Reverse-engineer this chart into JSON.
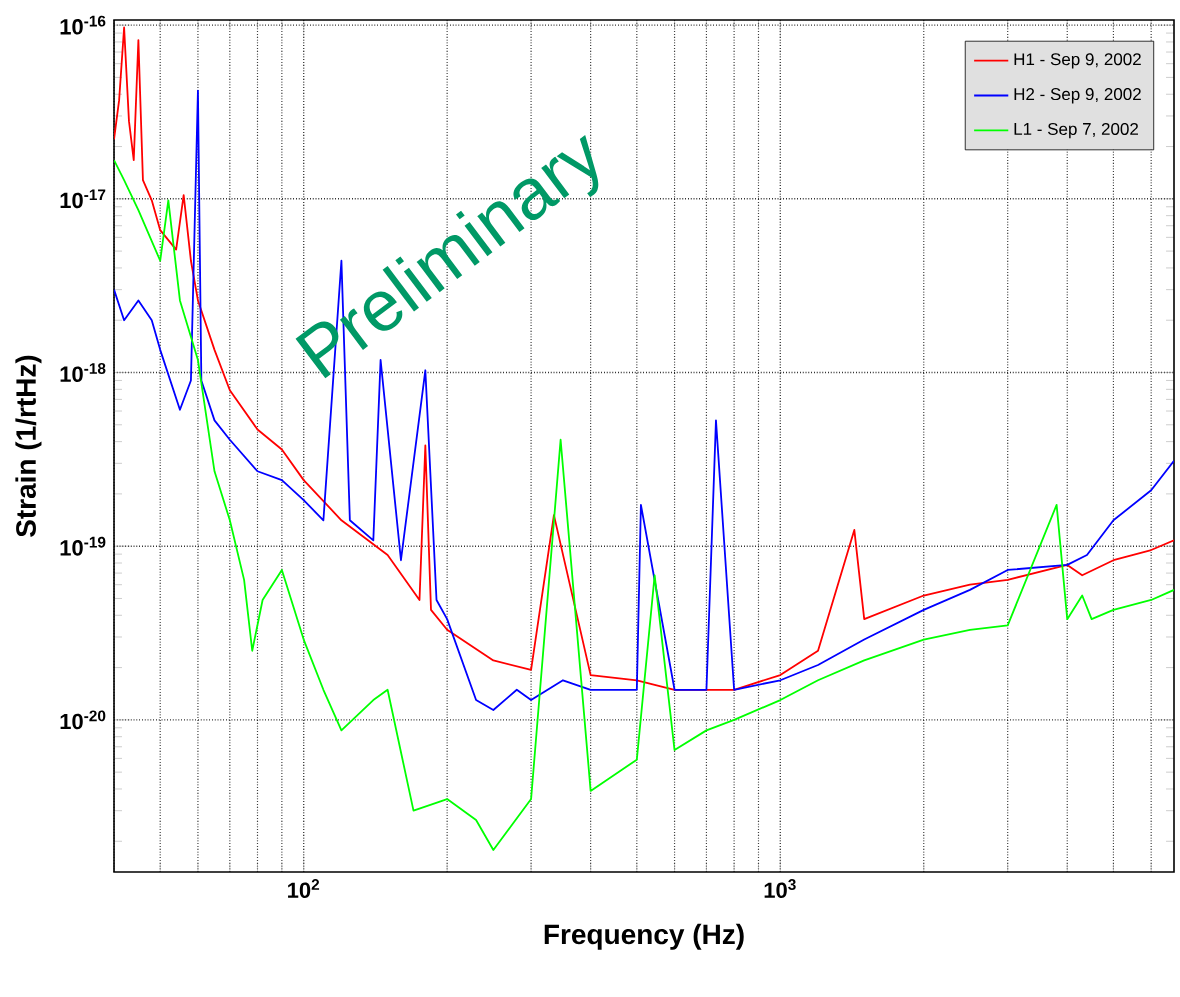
{
  "chart_data": {
    "type": "line",
    "xlabel": "Frequency (Hz)",
    "ylabel": "Strain (1/rtHz)",
    "log": "xy",
    "grid": true,
    "legend": "top right",
    "line_style": "solid",
    "xlim": [
      40,
      6700
    ],
    "ylim": [
      1.33e-21,
      1.07e-16
    ],
    "xticks": [
      {
        "value": 100,
        "label": "10$^{2}$"
      },
      {
        "value": 1000,
        "label": "10$^{3}$"
      }
    ],
    "yticks": [
      {
        "value": 1e-20,
        "label": "10$^{-20}$"
      },
      {
        "value": 1e-19,
        "label": "10$^{-19}$"
      },
      {
        "value": 1e-18,
        "label": "10$^{-18}$"
      },
      {
        "value": 1e-17,
        "label": "10$^{-17}$"
      },
      {
        "value": 1e-16,
        "label": "10$^{-16}$"
      }
    ],
    "annotations": [
      "Preliminary"
    ],
    "series": [
      {
        "name": "H1 - Sep 9, 2002",
        "color": "#ff0000",
        "x": [
          40,
          41,
          42,
          43,
          44,
          45,
          46,
          48,
          50,
          54,
          56,
          58,
          60,
          65,
          70,
          80,
          90,
          100,
          120,
          150,
          175,
          180,
          185,
          200,
          250,
          300,
          335,
          400,
          500,
          600,
          700,
          800,
          1000,
          1200,
          1430,
          1500,
          2000,
          2500,
          3000,
          4000,
          4300,
          5000,
          6000,
          6700
        ],
        "values": [
          2.2e-17,
          3.7e-17,
          9.7e-17,
          2.8e-17,
          1.67e-17,
          8.2e-17,
          1.28e-17,
          9.8e-18,
          6.6e-18,
          5.1e-18,
          1.05e-17,
          4.4e-18,
          2.6e-18,
          1.35e-18,
          7.9e-19,
          4.7e-19,
          3.6e-19,
          2.4e-19,
          1.41e-19,
          8.9e-20,
          4.9e-20,
          3.8e-19,
          4.3e-20,
          3.3e-20,
          2.2e-20,
          1.94e-20,
          1.51e-19,
          1.81e-20,
          1.69e-20,
          1.49e-20,
          1.49e-20,
          1.49e-20,
          1.81e-20,
          2.5e-20,
          1.24e-19,
          3.8e-20,
          5.2e-20,
          6e-20,
          6.4e-20,
          7.8e-20,
          6.8e-20,
          8.3e-20,
          9.5e-20,
          1.08e-19
        ]
      },
      {
        "name": "H2 - Sep 9, 2002",
        "color": "#0000ff",
        "x": [
          40,
          42,
          45,
          48,
          50,
          55,
          58,
          60,
          61,
          65,
          70,
          80,
          90,
          100,
          110,
          120,
          125,
          140,
          145,
          160,
          180,
          190,
          200,
          230,
          250,
          280,
          300,
          350,
          400,
          500,
          510,
          600,
          700,
          733,
          800,
          1000,
          1200,
          1500,
          2000,
          2500,
          3000,
          4000,
          4400,
          5000,
          6000,
          6700
        ],
        "values": [
          3e-18,
          2e-18,
          2.6e-18,
          2e-18,
          1.35e-18,
          6.1e-19,
          9e-19,
          4.2e-17,
          9e-19,
          5.3e-19,
          4.1e-19,
          2.7e-19,
          2.4e-19,
          1.84e-19,
          1.41e-19,
          4.4e-18,
          1.41e-19,
          1.08e-19,
          1.18e-18,
          8.3e-20,
          1.03e-18,
          4.9e-20,
          3.8e-20,
          1.3e-20,
          1.14e-20,
          1.49e-20,
          1.3e-20,
          1.69e-20,
          1.49e-20,
          1.49e-20,
          1.73e-19,
          1.49e-20,
          1.49e-20,
          5.3e-19,
          1.49e-20,
          1.69e-20,
          2.07e-20,
          2.9e-20,
          4.3e-20,
          5.6e-20,
          7.3e-20,
          7.8e-20,
          8.9e-20,
          1.41e-19,
          2.1e-19,
          3.1e-19
        ]
      },
      {
        "name": "L1 - Sep 7, 2002",
        "color": "#00ff00",
        "x": [
          40,
          42,
          45,
          50,
          52,
          55,
          60,
          65,
          70,
          75,
          78,
          82,
          90,
          100,
          110,
          120,
          140,
          150,
          170,
          200,
          230,
          250,
          300,
          346,
          400,
          500,
          545,
          600,
          700,
          800,
          1000,
          1200,
          1500,
          2000,
          2500,
          3000,
          3800,
          4000,
          4300,
          4500,
          5000,
          6000,
          6700
        ],
        "values": [
          1.67e-17,
          1.28e-17,
          8.6e-18,
          4.4e-18,
          9.8e-18,
          2.6e-18,
          1.18e-18,
          2.7e-19,
          1.41e-19,
          6.4e-20,
          2.5e-20,
          4.9e-20,
          7.3e-20,
          2.9e-20,
          1.49e-20,
          8.7e-21,
          1.3e-20,
          1.49e-20,
          3e-21,
          3.5e-21,
          2.65e-21,
          1.78e-21,
          3.5e-21,
          4.1e-19,
          3.9e-21,
          5.9e-21,
          6.8e-20,
          6.7e-21,
          8.7e-21,
          1e-20,
          1.3e-20,
          1.69e-20,
          2.2e-20,
          2.9e-20,
          3.3e-20,
          3.5e-20,
          1.73e-19,
          3.8e-20,
          5.2e-20,
          3.8e-20,
          4.3e-20,
          4.9e-20,
          5.6e-20
        ]
      }
    ]
  }
}
